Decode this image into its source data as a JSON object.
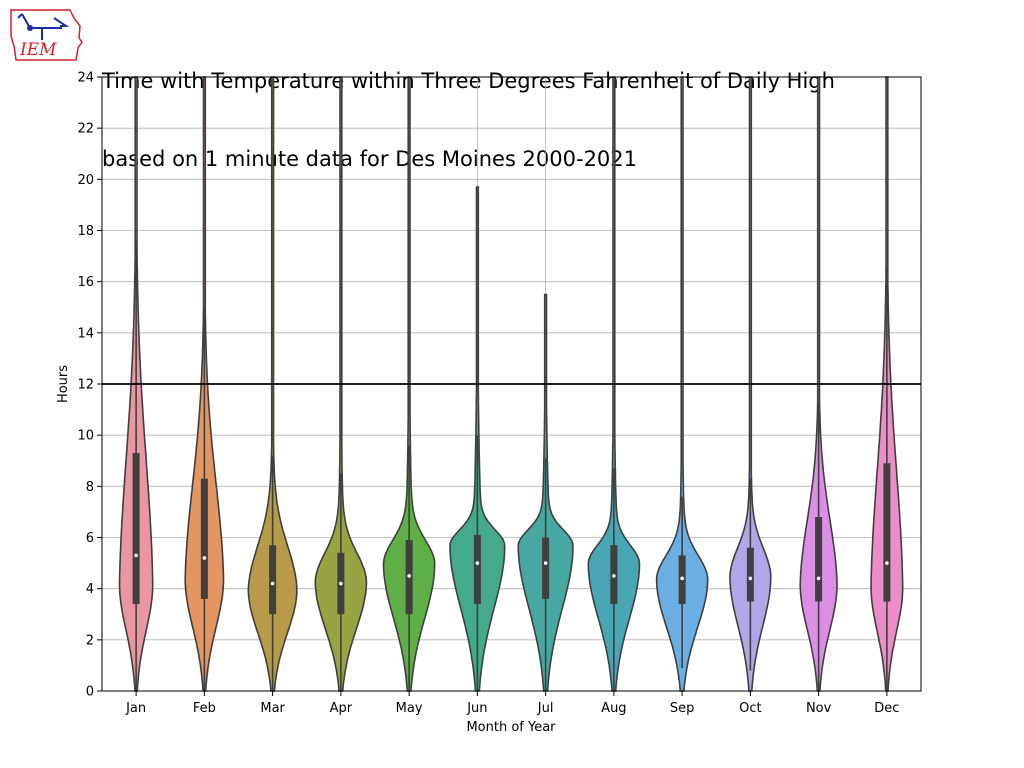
{
  "logo": {
    "text": "IEM",
    "icon": "iowa-state-outline-icon",
    "color": "#d0202a"
  },
  "chart_data": {
    "type": "violin",
    "title": "Time with Temperature within Three Degrees Fahrenheit of Daily High\nbased on 1 minute data for Des Moines 2000-2021",
    "title_lines": [
      "Time with Temperature within Three Degrees Fahrenheit of Daily High",
      "based on 1 minute data for Des Moines 2000-2021"
    ],
    "xlabel": "Month of Year",
    "ylabel": "Hours",
    "ylim": [
      0,
      24
    ],
    "yticks": [
      0,
      2,
      4,
      6,
      8,
      10,
      12,
      14,
      16,
      18,
      20,
      22,
      24
    ],
    "grid": true,
    "reference_line": {
      "y": 12,
      "color": "#000000"
    },
    "categories": [
      "Jan",
      "Feb",
      "Mar",
      "Apr",
      "May",
      "Jun",
      "Jul",
      "Aug",
      "Sep",
      "Oct",
      "Nov",
      "Dec"
    ],
    "series": [
      {
        "category": "Jan",
        "color": "#ea96a3",
        "median": 5.3,
        "q1": 3.4,
        "q3": 9.3,
        "whisker_low": 0,
        "whisker_high": 17.6,
        "min": 0,
        "max": 24,
        "mode": 4.2,
        "peak_half_width_hours": 0.65
      },
      {
        "category": "Feb",
        "color": "#e59560",
        "median": 5.2,
        "q1": 3.6,
        "q3": 8.3,
        "whisker_low": 0,
        "whisker_high": 15.0,
        "min": 0,
        "max": 24,
        "mode": 4.4,
        "peak_half_width_hours": 0.75
      },
      {
        "category": "Mar",
        "color": "#b89a48",
        "median": 4.2,
        "q1": 3.0,
        "q3": 5.7,
        "whisker_low": 0,
        "whisker_high": 9.2,
        "min": 0,
        "max": 24,
        "mode": 4.0,
        "peak_half_width_hours": 0.95
      },
      {
        "category": "Apr",
        "color": "#98a341",
        "median": 4.2,
        "q1": 3.0,
        "q3": 5.4,
        "whisker_low": 0,
        "whisker_high": 8.5,
        "min": 0,
        "max": 24,
        "mode": 4.3,
        "peak_half_width_hours": 1.0
      },
      {
        "category": "May",
        "color": "#5eaf46",
        "median": 4.5,
        "q1": 3.0,
        "q3": 5.9,
        "whisker_low": 0,
        "whisker_high": 9.6,
        "min": 0,
        "max": 24,
        "mode": 5.0,
        "peak_half_width_hours": 1.0
      },
      {
        "category": "Jun",
        "color": "#43aa8b",
        "median": 5.0,
        "q1": 3.4,
        "q3": 6.1,
        "whisker_low": 0,
        "whisker_high": 10.0,
        "min": 0,
        "max": 19.7,
        "mode": 5.7,
        "peak_half_width_hours": 1.07
      },
      {
        "category": "Jul",
        "color": "#46a8a0",
        "median": 5.0,
        "q1": 3.6,
        "q3": 6.0,
        "whisker_low": 0,
        "whisker_high": 9.1,
        "min": 0,
        "max": 15.5,
        "mode": 5.7,
        "peak_half_width_hours": 1.07
      },
      {
        "category": "Aug",
        "color": "#48a6b5",
        "median": 4.5,
        "q1": 3.4,
        "q3": 5.7,
        "whisker_low": 0,
        "whisker_high": 8.7,
        "min": 0,
        "max": 24,
        "mode": 5.0,
        "peak_half_width_hours": 1.0
      },
      {
        "category": "Sep",
        "color": "#6aaee3",
        "median": 4.4,
        "q1": 3.4,
        "q3": 5.3,
        "whisker_low": 0.9,
        "whisker_high": 7.6,
        "min": 0,
        "max": 24,
        "mode": 4.4,
        "peak_half_width_hours": 1.0
      },
      {
        "category": "Oct",
        "color": "#b2a5e8",
        "median": 4.4,
        "q1": 3.5,
        "q3": 5.6,
        "whisker_low": 0.8,
        "whisker_high": 8.3,
        "min": 0,
        "max": 24,
        "mode": 4.5,
        "peak_half_width_hours": 0.8
      },
      {
        "category": "Nov",
        "color": "#dd8fe7",
        "median": 4.4,
        "q1": 3.5,
        "q3": 6.8,
        "whisker_low": 0,
        "whisker_high": 11.3,
        "min": 0,
        "max": 24,
        "mode": 4.2,
        "peak_half_width_hours": 0.72
      },
      {
        "category": "Dec",
        "color": "#ec8dc7",
        "median": 5.0,
        "q1": 3.5,
        "q3": 8.9,
        "whisker_low": 0,
        "whisker_high": 16.5,
        "min": 0,
        "max": 24,
        "mode": 4.1,
        "peak_half_width_hours": 0.62
      }
    ]
  }
}
